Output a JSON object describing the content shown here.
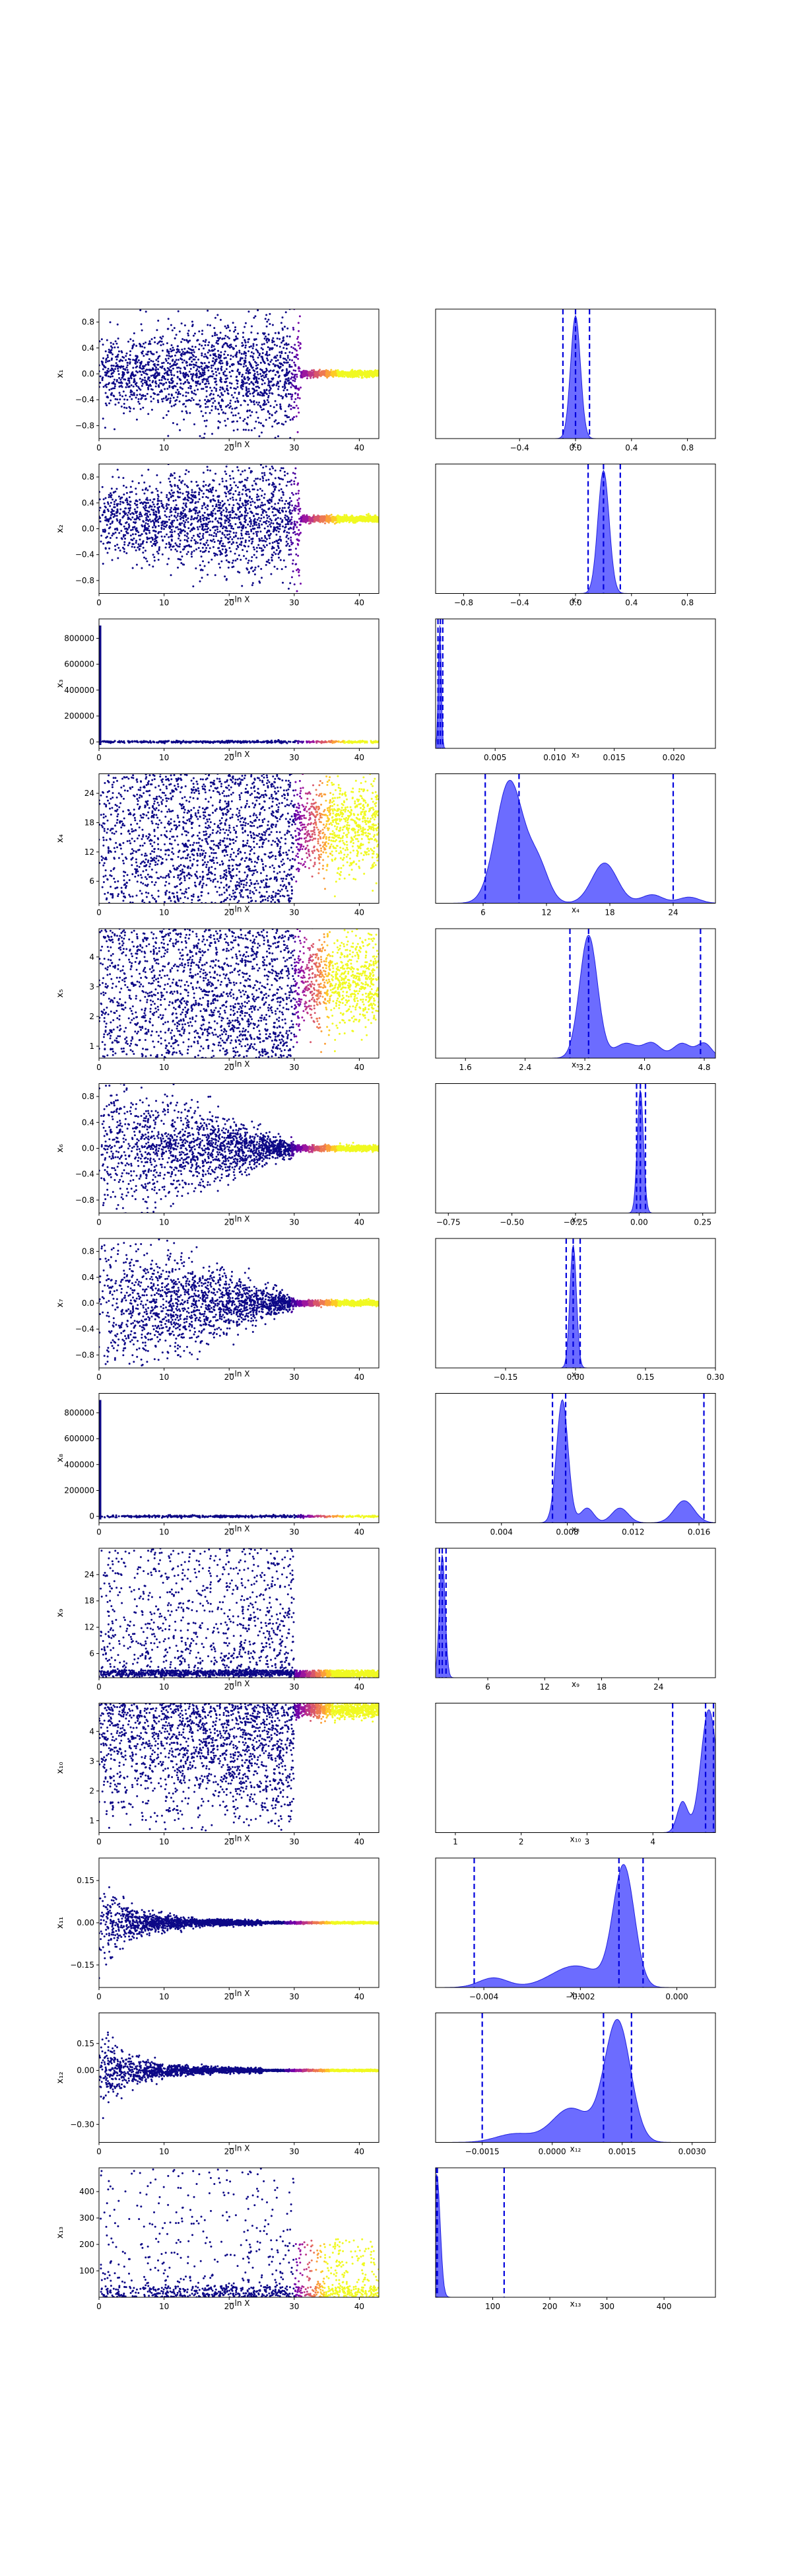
{
  "figure": {
    "type": "dynesty-trace-plot"
  },
  "colors": {
    "scatter_cmap": [
      "#0d0887",
      "#46039f",
      "#7201a8",
      "#9c179e",
      "#bd3786",
      "#d8576b",
      "#ed7953",
      "#fb9f3a",
      "#fdca26",
      "#f0f921"
    ],
    "posterior_fill": "#3b3bff",
    "posterior_edge": "#2020e0",
    "quantile_line": "#0000dd"
  },
  "chart_data": [
    {
      "type": "scatter",
      "name": "trace-x1",
      "xlabel": "−ln X",
      "ylabel": "x₁",
      "xlim": [
        0,
        43
      ],
      "ylim": [
        -1.0,
        1.0
      ],
      "xticks": [
        "0",
        "10",
        "20",
        "30",
        "40"
      ],
      "yticks": [
        "−0.8",
        "−0.4",
        "0.0",
        "0.4",
        "0.8"
      ],
      "pattern": {
        "spread": 0.7,
        "center": 0.0,
        "converge_at": 31,
        "kind": "wide"
      }
    },
    {
      "type": "area",
      "name": "posterior-x1",
      "xlabel": "x₁",
      "xlim": [
        -1.0,
        1.0
      ],
      "xticks": [
        "−0.4",
        "0.0",
        "0.4",
        "0.8"
      ],
      "peaks": [
        [
          0.0,
          0.035,
          1.0
        ]
      ],
      "quantiles": [
        -0.09,
        0.0,
        0.1
      ]
    },
    {
      "type": "scatter",
      "name": "trace-x2",
      "xlabel": "−ln X",
      "ylabel": "x₂",
      "xlim": [
        0,
        43
      ],
      "ylim": [
        -1.0,
        1.0
      ],
      "xticks": [
        "0",
        "10",
        "20",
        "30",
        "40"
      ],
      "yticks": [
        "−0.8",
        "−0.4",
        "0.0",
        "0.4",
        "0.8"
      ],
      "pattern": {
        "spread": 0.7,
        "center": 0.15,
        "converge_at": 31,
        "kind": "wide"
      }
    },
    {
      "type": "area",
      "name": "posterior-x2",
      "xlabel": "x₂",
      "xlim": [
        -1.0,
        1.0
      ],
      "xticks": [
        "−0.8",
        "−0.4",
        "0.0",
        "0.4",
        "0.8"
      ],
      "peaks": [
        [
          0.2,
          0.04,
          1.0
        ]
      ],
      "quantiles": [
        0.09,
        0.2,
        0.32
      ]
    },
    {
      "type": "scatter",
      "name": "trace-x3",
      "xlabel": "−ln X",
      "ylabel": "x₃",
      "xlim": [
        0,
        43
      ],
      "ylim": [
        -50000,
        950000
      ],
      "xticks": [
        "0",
        "10",
        "20",
        "30",
        "40"
      ],
      "yticks": [
        "0",
        "200000",
        "400000",
        "600000",
        "800000"
      ],
      "pattern": {
        "spread": 0.02,
        "center": 0.0,
        "converge_at": 1,
        "kind": "flat"
      }
    },
    {
      "type": "area",
      "name": "posterior-x3",
      "xlabel": "x₃",
      "xlim": [
        0,
        0.0235
      ],
      "xticks": [
        "0.005",
        "0.010",
        "0.015",
        "0.020"
      ],
      "peaks": [
        [
          0.00035,
          0.00012,
          1.0
        ]
      ],
      "quantiles": [
        0.0002,
        0.0004,
        0.0006
      ]
    },
    {
      "type": "scatter",
      "name": "trace-x4",
      "xlabel": "−ln X",
      "ylabel": "x₄",
      "xlim": [
        0,
        43
      ],
      "ylim": [
        1.5,
        28
      ],
      "xticks": [
        "0",
        "10",
        "20",
        "30",
        "40"
      ],
      "yticks": [
        "6",
        "12",
        "18",
        "24"
      ],
      "pattern": {
        "spread": 1.0,
        "center": 0.0,
        "converge_at": 36,
        "kind": "band"
      }
    },
    {
      "type": "area",
      "name": "posterior-x4",
      "xlabel": "x₄",
      "xlim": [
        1.5,
        28
      ],
      "xticks": [
        "6",
        "12",
        "18",
        "24"
      ],
      "peaks": [
        [
          8.5,
          1.3,
          1.0
        ],
        [
          11.2,
          1.0,
          0.3
        ],
        [
          17.5,
          1.2,
          0.33
        ],
        [
          22,
          1.0,
          0.07
        ],
        [
          25.5,
          1.0,
          0.05
        ]
      ],
      "quantiles": [
        6.2,
        9.4,
        24.0
      ]
    },
    {
      "type": "scatter",
      "name": "trace-x5",
      "xlabel": "−ln X",
      "ylabel": "x₅",
      "xlim": [
        0,
        43
      ],
      "ylim": [
        0.6,
        4.95
      ],
      "xticks": [
        "0",
        "10",
        "20",
        "30",
        "40"
      ],
      "yticks": [
        "1",
        "2",
        "3",
        "4"
      ],
      "pattern": {
        "spread": 1.0,
        "center": 0.0,
        "converge_at": 36,
        "kind": "band"
      }
    },
    {
      "type": "area",
      "name": "posterior-x5",
      "xlabel": "x₅",
      "xlim": [
        1.2,
        4.95
      ],
      "xticks": [
        "1.6",
        "2.4",
        "3.2",
        "4.0",
        "4.8"
      ],
      "peaks": [
        [
          3.25,
          0.12,
          1.0
        ],
        [
          3.75,
          0.15,
          0.12
        ],
        [
          4.1,
          0.12,
          0.12
        ],
        [
          4.5,
          0.12,
          0.12
        ],
        [
          4.8,
          0.1,
          0.12
        ]
      ],
      "quantiles": [
        3.0,
        3.25,
        4.75
      ]
    },
    {
      "type": "scatter",
      "name": "trace-x6",
      "xlabel": "−ln X",
      "ylabel": "x₆",
      "xlim": [
        0,
        43
      ],
      "ylim": [
        -1.0,
        1.0
      ],
      "xticks": [
        "0",
        "10",
        "20",
        "30",
        "40"
      ],
      "yticks": [
        "−0.8",
        "−0.4",
        "0.0",
        "0.4",
        "0.8"
      ],
      "pattern": {
        "spread": 0.75,
        "center": 0.0,
        "converge_at": 30,
        "kind": "narrowing"
      }
    },
    {
      "type": "area",
      "name": "posterior-x6",
      "xlabel": "x₆",
      "xlim": [
        -0.8,
        0.3
      ],
      "xticks": [
        "−0.75",
        "−0.50",
        "−0.25",
        "0.00",
        "0.25"
      ],
      "peaks": [
        [
          0.005,
          0.012,
          1.0
        ]
      ],
      "quantiles": [
        -0.01,
        0.005,
        0.025
      ]
    },
    {
      "type": "scatter",
      "name": "trace-x7",
      "xlabel": "−ln X",
      "ylabel": "x₇",
      "xlim": [
        0,
        43
      ],
      "ylim": [
        -1.0,
        1.0
      ],
      "xticks": [
        "0",
        "10",
        "20",
        "30",
        "40"
      ],
      "yticks": [
        "−0.8",
        "−0.4",
        "0.0",
        "0.4",
        "0.8"
      ],
      "pattern": {
        "spread": 0.75,
        "center": 0.0,
        "converge_at": 30,
        "kind": "narrowing"
      }
    },
    {
      "type": "area",
      "name": "posterior-x7",
      "xlabel": "x₇",
      "xlim": [
        -0.3,
        0.3
      ],
      "xticks": [
        "−0.15",
        "0.00",
        "0.15",
        "0.30"
      ],
      "peaks": [
        [
          -0.005,
          0.007,
          1.0
        ]
      ],
      "quantiles": [
        -0.02,
        -0.005,
        0.01
      ]
    },
    {
      "type": "scatter",
      "name": "trace-x8",
      "xlabel": "−ln X",
      "ylabel": "x₈",
      "xlim": [
        0,
        43
      ],
      "ylim": [
        -50000,
        950000
      ],
      "xticks": [
        "0",
        "10",
        "20",
        "30",
        "40"
      ],
      "yticks": [
        "0",
        "200000",
        "400000",
        "600000",
        "800000"
      ],
      "pattern": {
        "spread": 0.02,
        "center": 0.0,
        "converge_at": 1,
        "kind": "flat"
      }
    },
    {
      "type": "area",
      "name": "posterior-x8",
      "xlabel": "x₈",
      "xlim": [
        0,
        0.017
      ],
      "xticks": [
        "0.004",
        "0.008",
        "0.012",
        "0.016"
      ],
      "peaks": [
        [
          0.0077,
          0.00035,
          1.0
        ],
        [
          0.0092,
          0.0004,
          0.12
        ],
        [
          0.0112,
          0.0005,
          0.12
        ],
        [
          0.0151,
          0.0006,
          0.18
        ]
      ],
      "quantiles": [
        0.0071,
        0.0079,
        0.0163
      ]
    },
    {
      "type": "scatter",
      "name": "trace-x9",
      "xlabel": "−ln X",
      "ylabel": "x₉",
      "xlim": [
        0,
        43
      ],
      "ylim": [
        0.5,
        30
      ],
      "xticks": [
        "0",
        "10",
        "20",
        "30",
        "40"
      ],
      "yticks": [
        "6",
        "12",
        "18",
        "24"
      ],
      "pattern": {
        "spread": 1.0,
        "center": 0.0,
        "converge_at": 30,
        "kind": "low"
      }
    },
    {
      "type": "area",
      "name": "posterior-x9",
      "xlabel": "x₉",
      "xlim": [
        0.5,
        30
      ],
      "xticks": [
        "6",
        "12",
        "18",
        "24"
      ],
      "peaks": [
        [
          1.2,
          0.3,
          1.0
        ]
      ],
      "quantiles": [
        0.9,
        1.2,
        1.6
      ]
    },
    {
      "type": "scatter",
      "name": "trace-x10",
      "xlabel": "−ln X",
      "ylabel": "x₁₀",
      "xlim": [
        0,
        43
      ],
      "ylim": [
        0.6,
        4.95
      ],
      "xticks": [
        "0",
        "10",
        "20",
        "30",
        "40"
      ],
      "yticks": [
        "1",
        "2",
        "3",
        "4"
      ],
      "pattern": {
        "spread": 1.0,
        "center": 0.0,
        "converge_at": 33,
        "kind": "high"
      }
    },
    {
      "type": "area",
      "name": "posterior-x10",
      "xlabel": "x₁₀",
      "xlim": [
        0.7,
        4.95
      ],
      "xticks": [
        "1",
        "2",
        "3",
        "4"
      ],
      "peaks": [
        [
          4.85,
          0.12,
          1.0
        ],
        [
          4.45,
          0.08,
          0.25
        ]
      ],
      "quantiles": [
        4.3,
        4.8,
        4.92
      ]
    },
    {
      "type": "scatter",
      "name": "trace-x11",
      "xlabel": "−ln X",
      "ylabel": "x₁₁",
      "xlim": [
        0,
        43
      ],
      "ylim": [
        -0.23,
        0.23
      ],
      "xticks": [
        "0",
        "10",
        "20",
        "30",
        "40"
      ],
      "yticks": [
        "−0.15",
        "0.00",
        "0.15"
      ],
      "pattern": {
        "spread": 0.15,
        "center": 0.0,
        "converge_at": 25,
        "kind": "funnel"
      }
    },
    {
      "type": "area",
      "name": "posterior-x11",
      "xlabel": "x₁₁",
      "xlim": [
        -0.005,
        0.0008
      ],
      "xticks": [
        "−0.004",
        "−0.002",
        "0.000"
      ],
      "peaks": [
        [
          -0.0038,
          0.0003,
          0.08
        ],
        [
          -0.0021,
          0.0005,
          0.18
        ],
        [
          -0.0011,
          0.00022,
          1.0
        ]
      ],
      "quantiles": [
        -0.0042,
        -0.0012,
        -0.0007
      ]
    },
    {
      "type": "scatter",
      "name": "trace-x12",
      "xlabel": "−ln X",
      "ylabel": "x₁₂",
      "xlim": [
        0,
        43
      ],
      "ylim": [
        -0.4,
        0.32
      ],
      "xticks": [
        "0",
        "10",
        "20",
        "30",
        "40"
      ],
      "yticks": [
        "−0.30",
        "0.00",
        "0.15"
      ],
      "pattern": {
        "spread": 0.22,
        "center": 0.0,
        "converge_at": 25,
        "kind": "funnel"
      }
    },
    {
      "type": "area",
      "name": "posterior-x12",
      "xlabel": "x₁₂",
      "xlim": [
        -0.0025,
        0.0035
      ],
      "xticks": [
        "−0.0015",
        "0.0000",
        "0.0015",
        "0.0030"
      ],
      "peaks": [
        [
          0.0014,
          0.00028,
          1.0
        ],
        [
          0.0004,
          0.0004,
          0.28
        ],
        [
          -0.0008,
          0.0004,
          0.07
        ]
      ],
      "quantiles": [
        -0.0015,
        0.0011,
        0.0017
      ]
    },
    {
      "type": "scatter",
      "name": "trace-x13",
      "xlabel": "−ln X",
      "ylabel": "x₁₃",
      "xlim": [
        0,
        43
      ],
      "ylim": [
        0,
        490
      ],
      "xticks": [
        "0",
        "10",
        "20",
        "30",
        "40"
      ],
      "yticks": [
        "100",
        "200",
        "300",
        "400"
      ],
      "pattern": {
        "spread": 1.0,
        "center": 0.0,
        "converge_at": 30,
        "kind": "sparse"
      }
    },
    {
      "type": "area",
      "name": "posterior-x13",
      "xlabel": "x₁₃",
      "xlim": [
        0,
        490
      ],
      "xticks": [
        "100",
        "200",
        "300",
        "400"
      ],
      "peaks": [
        [
          2,
          6,
          1.0
        ]
      ],
      "quantiles": [
        1,
        3,
        120
      ]
    }
  ]
}
